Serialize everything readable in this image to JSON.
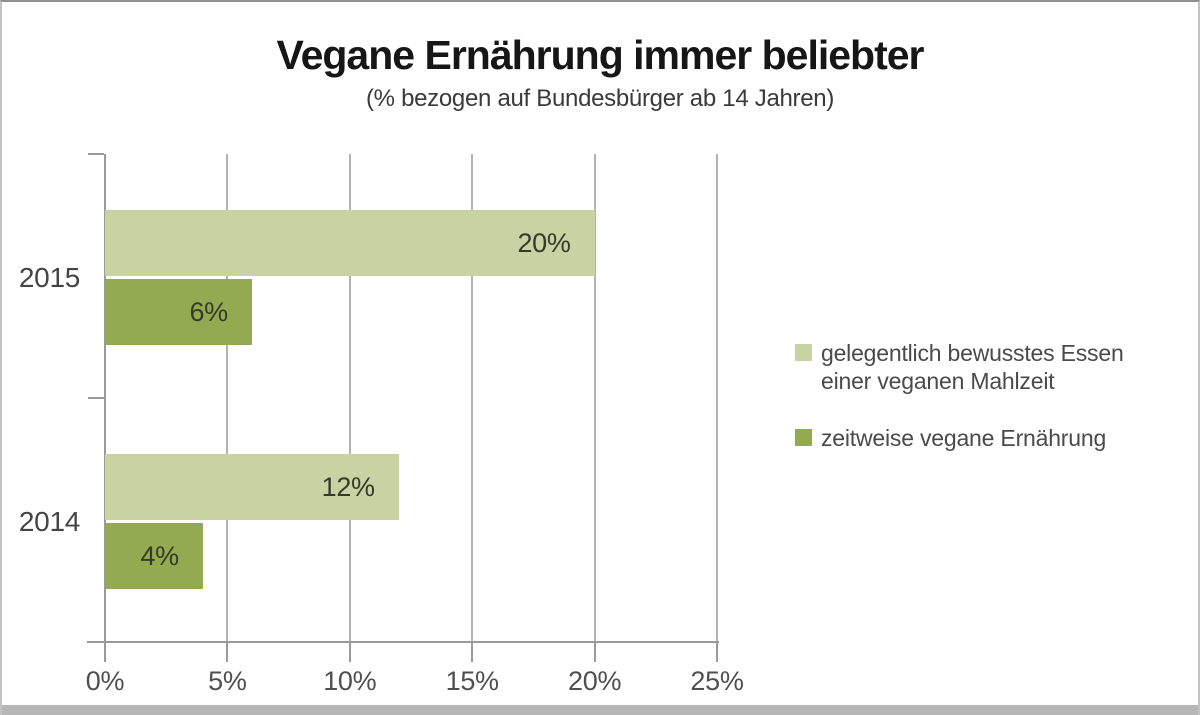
{
  "header": {
    "title": "Vegane Ernährung immer beliebter",
    "subtitle": "(% bezogen auf Bundesbürger ab 14 Jahren)"
  },
  "chart_data": {
    "type": "bar",
    "orientation": "horizontal",
    "title": "Vegane Ernährung immer beliebter",
    "subtitle": "(% bezogen auf Bundesbürger ab 14 Jahren)",
    "categories": [
      "2015",
      "2014"
    ],
    "series": [
      {
        "name": "gelegentlich bewusstes Essen einer veganen Mahlzeit",
        "color": "#c7d3a2",
        "values": [
          20,
          12
        ]
      },
      {
        "name": "zeitweise vegane Ernährung",
        "color": "#94aa50",
        "values": [
          6,
          4
        ]
      }
    ],
    "value_suffix": "%",
    "xlabel": "",
    "ylabel": "",
    "xlim": [
      0,
      25
    ],
    "x_ticks": [
      {
        "value": 0,
        "label": "0%"
      },
      {
        "value": 5,
        "label": "5%"
      },
      {
        "value": 10,
        "label": "10%"
      },
      {
        "value": 15,
        "label": "15%"
      },
      {
        "value": 20,
        "label": "20%"
      },
      {
        "value": 25,
        "label": "25%"
      }
    ],
    "grid": "vertical",
    "legend_position": "right",
    "bar_value_labels": "inside-right"
  },
  "legend": {
    "items": [
      {
        "label": "gelegentlich bewusstes Essen einer veganen Mahlzeit",
        "color": "#c7d3a2"
      },
      {
        "label": "zeitweise vegane Ernährung",
        "color": "#94aa50"
      }
    ]
  },
  "colors": {
    "bar_light_green": "#c7d3a2",
    "bar_dark_green": "#94aa50",
    "gridline": "#b3b3b3",
    "axis": "#9a9a9a",
    "title_text": "#161616",
    "legend_text": "#4a4a4a",
    "bottom_strip": "#b6b6b6"
  }
}
